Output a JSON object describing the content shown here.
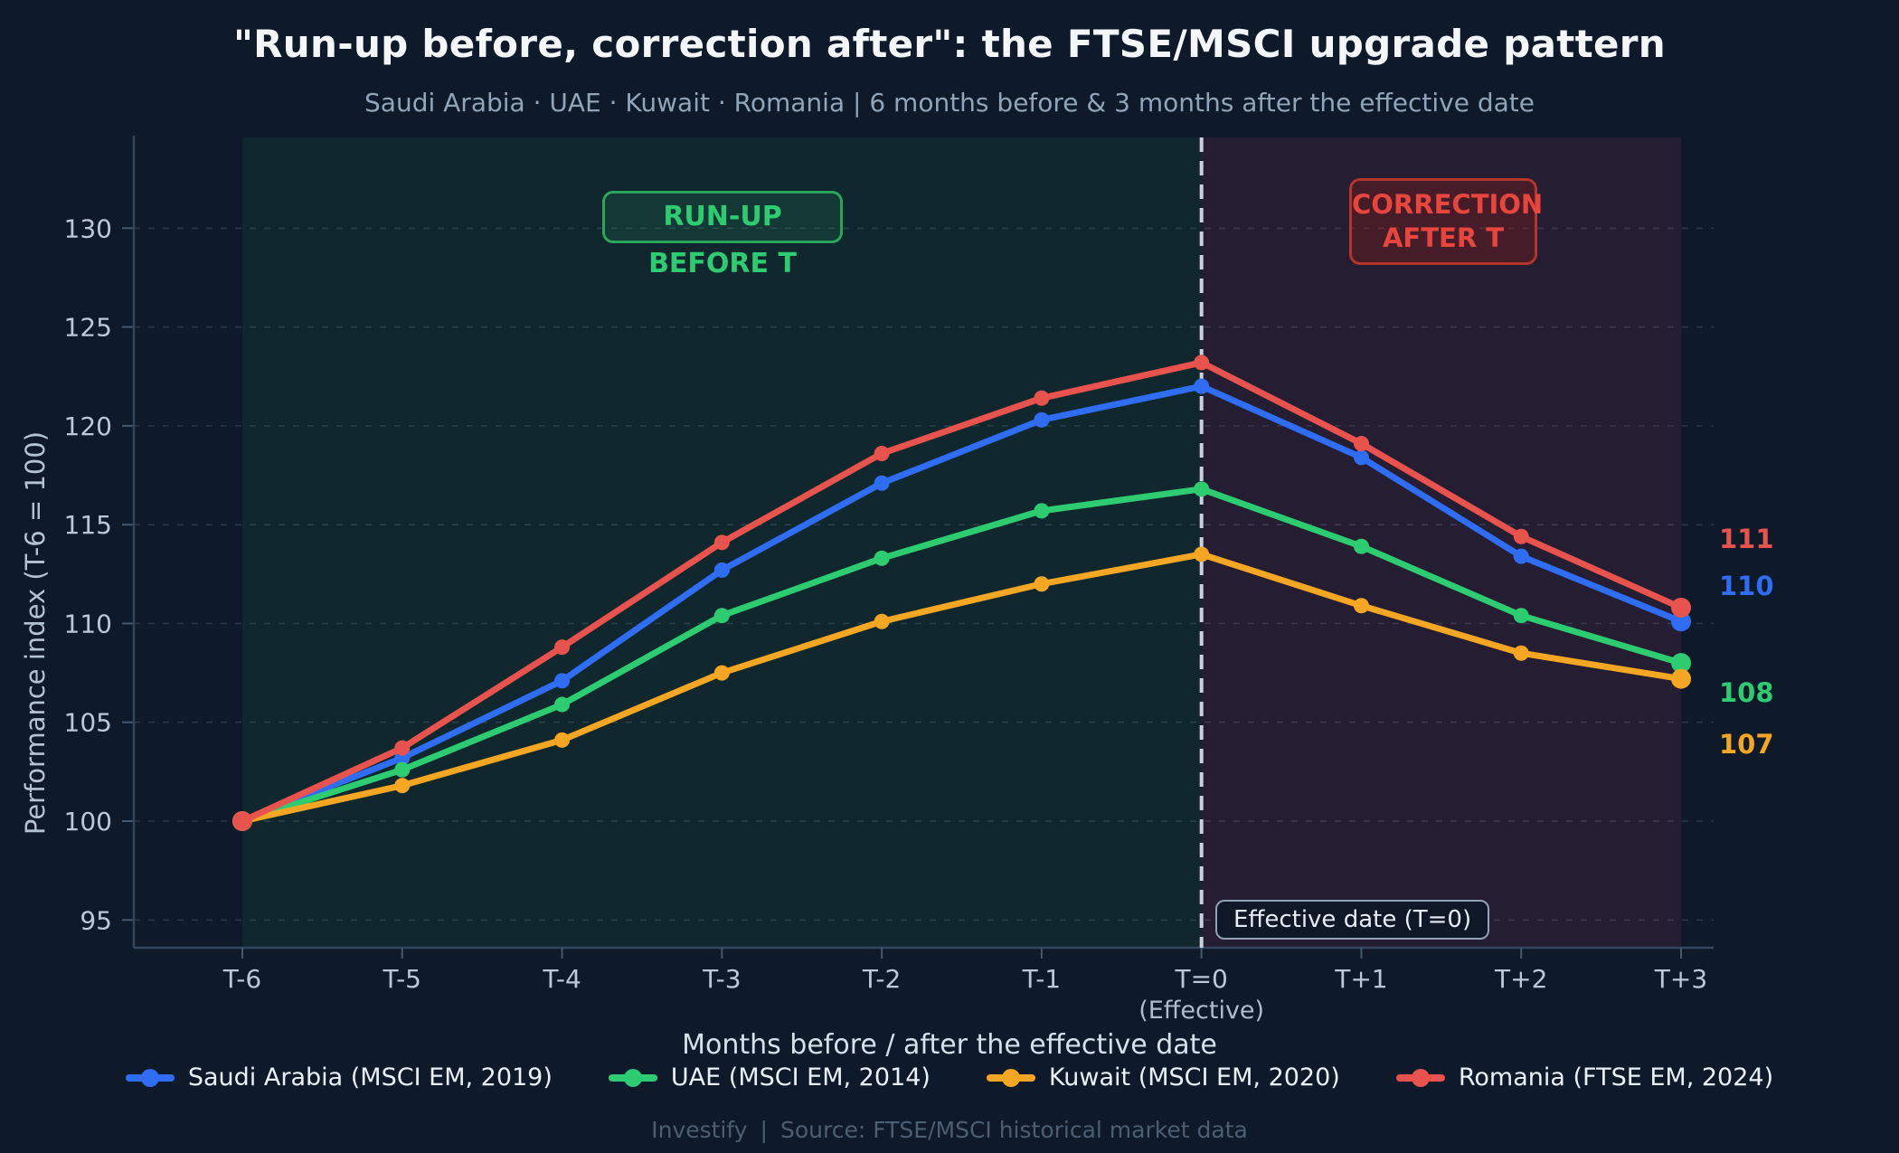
{
  "header": {
    "title": "\"Run-up before, correction after\": the FTSE/MSCI upgrade pattern",
    "subtitle": "Saudi Arabia · UAE · Kuwait · Romania | 6 months before & 3 months after the effective date"
  },
  "chart_data": {
    "type": "line",
    "title": "\"Run-up before, correction after\": the FTSE/MSCI upgrade pattern",
    "xlabel": "Months before / after the effective date",
    "ylabel": "Performance index (T-6 = 100)",
    "categories": [
      "T-6",
      "T-5",
      "T-4",
      "T-3",
      "T-2",
      "T-1",
      "T=0",
      "T+1",
      "T+2",
      "T+3"
    ],
    "x_sublabel": {
      "category": "T=0",
      "text": "(Effective)"
    },
    "yticks": [
      95,
      100,
      105,
      110,
      115,
      120,
      125,
      130
    ],
    "ylim": [
      93.5,
      133.5
    ],
    "grid": "horizontal-dashed",
    "legend_position": "bottom",
    "series": [
      {
        "name": "Saudi Arabia (MSCI EM, 2019)",
        "color": "#2e6df4",
        "values": [
          100,
          103.2,
          107.1,
          112.7,
          117.1,
          120.3,
          122.0,
          118.4,
          113.4,
          110.1
        ],
        "end_label": "110"
      },
      {
        "name": "UAE (MSCI EM, 2014)",
        "color": "#2ecc71",
        "values": [
          100,
          102.6,
          105.9,
          110.4,
          113.3,
          115.7,
          116.8,
          113.9,
          110.4,
          108.0
        ],
        "end_label": "108"
      },
      {
        "name": "Kuwait (MSCI EM, 2020)",
        "color": "#f5a623",
        "values": [
          100,
          101.8,
          104.1,
          107.5,
          110.1,
          112.0,
          113.5,
          110.9,
          108.5,
          107.2
        ],
        "end_label": "107"
      },
      {
        "name": "Romania (FTSE EM, 2024)",
        "color": "#e8534e",
        "values": [
          100,
          103.7,
          108.8,
          114.1,
          118.6,
          121.4,
          123.2,
          119.1,
          114.4,
          110.8
        ],
        "end_label": "111"
      }
    ],
    "regions": [
      {
        "label": "run-up zone",
        "from": "T-6",
        "to": "T=0",
        "color": "rgba(46,204,113,0.08)"
      },
      {
        "label": "correction zone",
        "from": "T=0",
        "to": "T+3",
        "color": "rgba(197,51,116,0.13)"
      }
    ],
    "annotations": {
      "runup_label": "RUN-UP BEFORE T",
      "correction_label": "CORRECTION\nAFTER T",
      "effective_label": "Effective date (T=0)"
    },
    "effective_line_color": "#c7d2dd"
  },
  "footer": {
    "brand": "Investify",
    "separator": "|",
    "source": "Source: FTSE/MSCI historical market data"
  }
}
